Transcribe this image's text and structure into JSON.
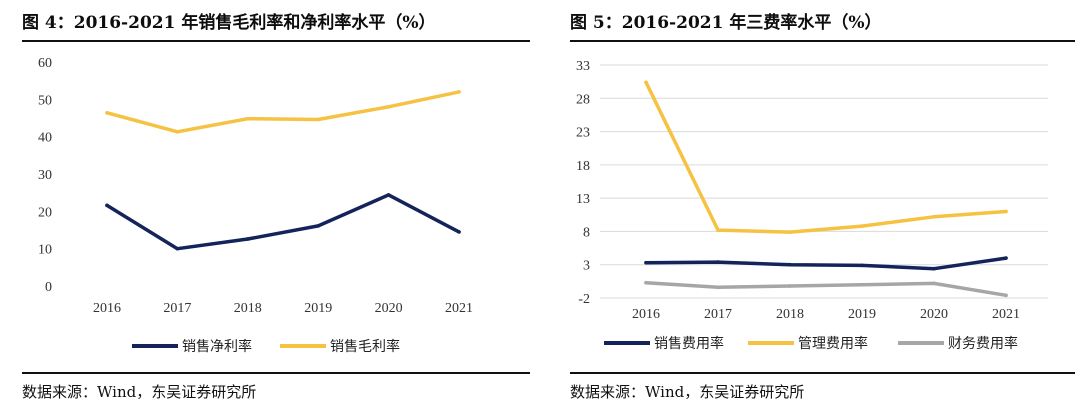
{
  "left": {
    "title": "图 4：2016-2021 年销售毛利率和净利率水平（%）",
    "source": "数据来源：Wind，东吴证券研究所"
  },
  "right": {
    "title": "图 5：2016-2021 年三费率水平（%）",
    "source": "数据来源：Wind，东吴证券研究所"
  },
  "colors": {
    "navy": "#14245b",
    "gold": "#f5c242",
    "gray": "#a6a6a6",
    "grid": "#d9d9d9"
  },
  "chart_data": [
    {
      "type": "line",
      "title": "图 4：2016-2021 年销售毛利率和净利率水平（%）",
      "categories": [
        "2016",
        "2017",
        "2018",
        "2019",
        "2020",
        "2021"
      ],
      "yticks": [
        0,
        10,
        20,
        30,
        40,
        50,
        60
      ],
      "ylim": [
        0,
        60
      ],
      "grid": false,
      "legend": "bottom",
      "series": [
        {
          "name": "销售净利率",
          "color": "#14245b",
          "values": [
            21.6,
            10.0,
            12.6,
            16.1,
            24.4,
            14.5
          ]
        },
        {
          "name": "销售毛利率",
          "color": "#f5c242",
          "values": [
            46.4,
            41.3,
            44.8,
            44.6,
            48.0,
            52.0
          ]
        }
      ]
    },
    {
      "type": "line",
      "title": "图 5：2016-2021 年三费率水平（%）",
      "categories": [
        "2016",
        "2017",
        "2018",
        "2019",
        "2020",
        "2021"
      ],
      "yticks": [
        -2,
        3,
        8,
        13,
        18,
        23,
        28,
        33
      ],
      "ylim": [
        -2,
        33
      ],
      "grid": true,
      "legend": "bottom",
      "series": [
        {
          "name": "销售费用率",
          "color": "#14245b",
          "values": [
            3.3,
            3.4,
            3.0,
            2.9,
            2.4,
            4.0
          ]
        },
        {
          "name": "管理费用率",
          "color": "#f5c242",
          "values": [
            30.4,
            8.2,
            7.9,
            8.8,
            10.2,
            11.0
          ]
        },
        {
          "name": "财务费用率",
          "color": "#a6a6a6",
          "values": [
            0.3,
            -0.4,
            -0.2,
            0.0,
            0.2,
            -1.6
          ]
        }
      ]
    }
  ]
}
